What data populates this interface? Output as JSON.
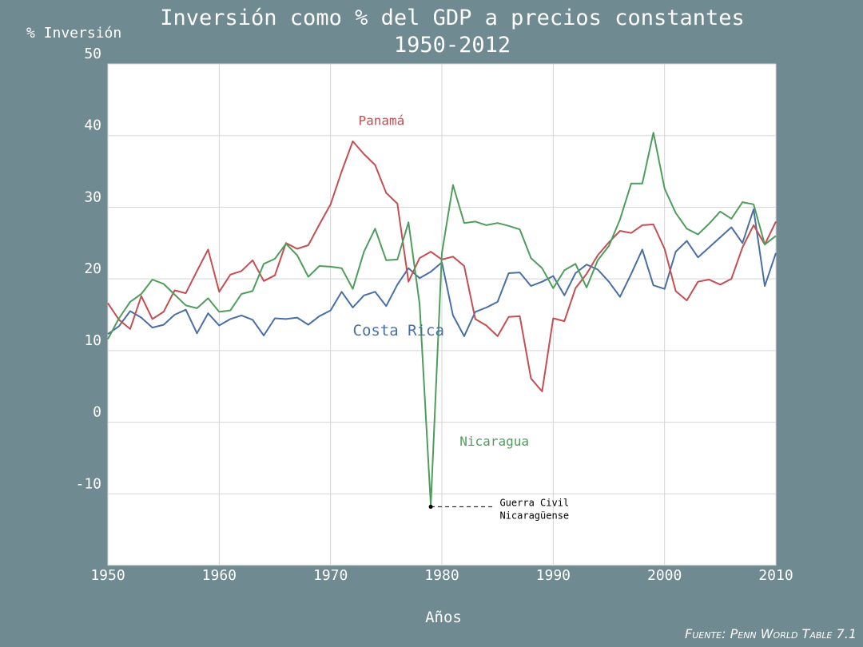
{
  "chart_data": {
    "type": "line",
    "title_line1": "Inversión como % del GDP a precios constantes",
    "title_line2": "1950-2012",
    "ylabel": "% Inversión",
    "xlabel": "Años",
    "source": "Fuente: Penn World Table 7.1",
    "xlim": [
      1950,
      2010
    ],
    "ylim": [
      -20,
      50
    ],
    "x_ticks": [
      "1950",
      "1960",
      "1970",
      "1980",
      "1990",
      "2000",
      "2010"
    ],
    "y_ticks": [
      "50",
      "40",
      "30",
      "20",
      "10",
      "0",
      "-10"
    ],
    "grid": true,
    "x": [
      1950,
      1951,
      1952,
      1953,
      1954,
      1955,
      1956,
      1957,
      1958,
      1959,
      1960,
      1961,
      1962,
      1963,
      1964,
      1965,
      1966,
      1967,
      1968,
      1969,
      1970,
      1971,
      1972,
      1973,
      1974,
      1975,
      1976,
      1977,
      1978,
      1979,
      1980,
      1981,
      1982,
      1983,
      1984,
      1985,
      1986,
      1987,
      1988,
      1989,
      1990,
      1991,
      1992,
      1993,
      1994,
      1995,
      1996,
      1997,
      1998,
      1999,
      2000,
      2001,
      2002,
      2003,
      2004,
      2005,
      2006,
      2007,
      2008,
      2009,
      2010
    ],
    "series": [
      {
        "name": "Costa Rica",
        "color": "#4a6fa5",
        "values": [
          12.3,
          13.4,
          15.5,
          14.6,
          13.2,
          13.6,
          15,
          15.7,
          12.4,
          15.2,
          13.5,
          14.4,
          14.9,
          14.3,
          12.1,
          14.5,
          14.4,
          14.6,
          13.6,
          14.8,
          15.6,
          18.2,
          16,
          17.7,
          18.2,
          16.2,
          19.2,
          21.5,
          20.1,
          21,
          22.3,
          14.9,
          12,
          15.4,
          16,
          16.8,
          20.8,
          20.9,
          19,
          19.6,
          20.4,
          17.7,
          20.8,
          22,
          21.3,
          19.6,
          17.5,
          20.7,
          24.1,
          19.1,
          18.6,
          23.8,
          25.3,
          23,
          24.4,
          25.8,
          27.2,
          25,
          29.7,
          19,
          23.6
        ]
      },
      {
        "name": "Panamá",
        "color": "#c44e52",
        "values": [
          16.6,
          14.3,
          13,
          17.6,
          14.4,
          15.4,
          18.4,
          18,
          21.1,
          24.1,
          18.2,
          20.6,
          21.1,
          22.6,
          19.7,
          20.5,
          25,
          24.2,
          24.7,
          27.6,
          30.4,
          35,
          39.2,
          37.4,
          35.9,
          32,
          30.5,
          19.6,
          22.9,
          23.8,
          22.7,
          23.1,
          21.8,
          14.4,
          13.5,
          12,
          14.7,
          14.8,
          6.1,
          4.3,
          14.5,
          14.1,
          18.7,
          20.7,
          23.3,
          25.1,
          26.7,
          26.4,
          27.5,
          27.6,
          24.2,
          18.3,
          17,
          19.6,
          19.9,
          19.2,
          20,
          24.4,
          27.5,
          24.8,
          28
        ]
      },
      {
        "name": "Nicaragua",
        "color": "#4f9d5d",
        "values": [
          11.6,
          14.5,
          16.8,
          17.9,
          19.9,
          19.3,
          17.8,
          16.3,
          15.9,
          17.3,
          15.4,
          15.6,
          17.9,
          18.3,
          22.1,
          22.8,
          24.9,
          23.3,
          20.3,
          21.8,
          21.7,
          21.5,
          18.6,
          23.8,
          27,
          22.6,
          22.7,
          27.9,
          16.5,
          -11.6,
          23.6,
          33.1,
          27.8,
          28,
          27.5,
          27.8,
          27.4,
          26.9,
          22.9,
          21.5,
          18.7,
          21.2,
          22.1,
          18.8,
          22.6,
          24.6,
          28.3,
          33.3,
          33.3,
          40.4,
          32.6,
          29.2,
          27,
          26.2,
          27.7,
          29.4,
          28.4,
          30.7,
          30.4,
          24.8,
          26
        ]
      }
    ],
    "series_labels": [
      {
        "text": "Panamá",
        "series": "Panamá",
        "x": 1972.5,
        "y": 41.5
      },
      {
        "text": "Costa Rica",
        "series": "Costa Rica",
        "x": 1972,
        "y": 12.1
      },
      {
        "text": "Nicaragua",
        "series": "Nicaragua",
        "x": 1981.6,
        "y": -3.3
      }
    ],
    "annotation": {
      "lines": [
        "Guerra Civil",
        "Nicaragüense"
      ],
      "point_x": 1979,
      "point_y": -11.8,
      "text_x": 1985.2
    }
  }
}
